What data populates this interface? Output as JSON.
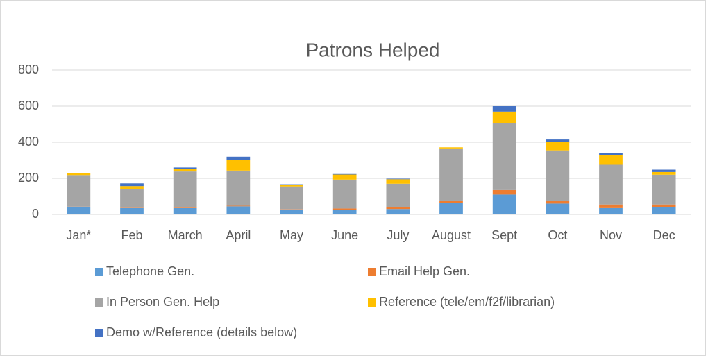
{
  "chart_data": {
    "type": "stacked_bar",
    "title": "Patrons Helped",
    "categories": [
      "Jan*",
      "Feb",
      "March",
      "April",
      "May",
      "June",
      "July",
      "August",
      "Sept",
      "Oct",
      "Nov",
      "Dec"
    ],
    "series": [
      {
        "name": "Telephone Gen.",
        "color": "#5b9bd5",
        "values": [
          40,
          35,
          35,
          45,
          28,
          25,
          30,
          65,
          110,
          60,
          35,
          40
        ]
      },
      {
        "name": "Email Help Gen.",
        "color": "#ed7d31",
        "values": [
          3,
          2,
          3,
          3,
          2,
          8,
          10,
          12,
          25,
          15,
          20,
          15
        ]
      },
      {
        "name": "In Person Gen. Help",
        "color": "#a5a5a5",
        "values": [
          175,
          105,
          200,
          195,
          125,
          160,
          130,
          285,
          370,
          280,
          220,
          165
        ]
      },
      {
        "name": "Reference (tele/em/f2f/librarian)",
        "color": "#ffc000",
        "values": [
          10,
          15,
          15,
          60,
          8,
          28,
          25,
          10,
          65,
          45,
          55,
          15
        ]
      },
      {
        "name": "Demo w/Reference (details below)",
        "color": "#4472c4",
        "values": [
          2,
          15,
          7,
          17,
          4,
          3,
          3,
          0,
          30,
          15,
          10,
          13
        ]
      }
    ],
    "ylim": [
      0,
      800
    ],
    "yticks": [
      0,
      200,
      400,
      600,
      800
    ],
    "grid": true
  }
}
